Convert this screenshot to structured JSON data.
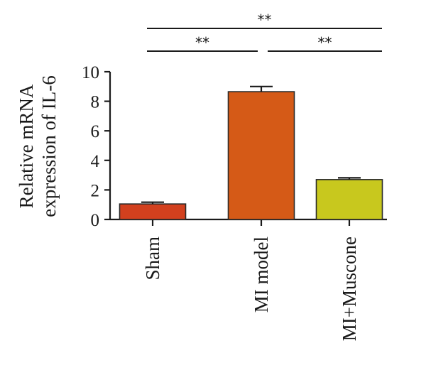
{
  "chart_data": {
    "type": "bar",
    "categories": [
      "Sham",
      "MI model",
      "MI+Muscone"
    ],
    "values": [
      1.05,
      8.65,
      2.7
    ],
    "errors": [
      0.12,
      0.35,
      0.12
    ],
    "colors": [
      "#d2401e",
      "#d55a17",
      "#c8c81e"
    ],
    "ylabel_lines": [
      "Relative mRNA",
      "expression of IL-6"
    ],
    "ylim": [
      0,
      10
    ],
    "yticks": [
      0,
      2,
      4,
      6,
      8,
      10
    ],
    "significance": [
      {
        "from": 0,
        "to": 2,
        "label": "**"
      },
      {
        "from": 0,
        "to": 1,
        "label": "**"
      },
      {
        "from": 1,
        "to": 2,
        "label": "**"
      }
    ]
  }
}
